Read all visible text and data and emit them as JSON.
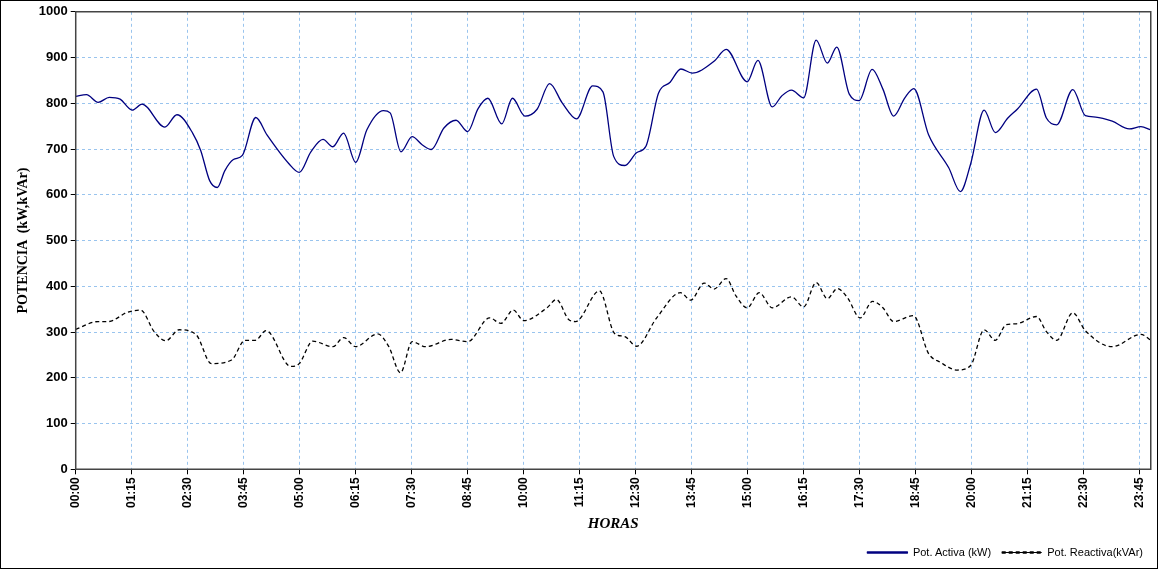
{
  "chart_data": {
    "type": "line",
    "xlabel": "HORAS",
    "ylabel": "POTENCIA  (kW,kVAr)",
    "xlim": [
      0,
      24
    ],
    "ylim": [
      0,
      1000
    ],
    "xticks": [
      {
        "value": 0,
        "label": "00:00"
      },
      {
        "value": 1.25,
        "label": "01:15"
      },
      {
        "value": 2.5,
        "label": "02:30"
      },
      {
        "value": 3.75,
        "label": "03:45"
      },
      {
        "value": 5,
        "label": "05:00"
      },
      {
        "value": 6.25,
        "label": "06:15"
      },
      {
        "value": 7.5,
        "label": "07:30"
      },
      {
        "value": 8.75,
        "label": "08:45"
      },
      {
        "value": 10,
        "label": "10:00"
      },
      {
        "value": 11.25,
        "label": "11:15"
      },
      {
        "value": 12.5,
        "label": "12:30"
      },
      {
        "value": 13.75,
        "label": "13:45"
      },
      {
        "value": 15,
        "label": "15:00"
      },
      {
        "value": 16.25,
        "label": "16:15"
      },
      {
        "value": 17.5,
        "label": "17:30"
      },
      {
        "value": 18.75,
        "label": "18:45"
      },
      {
        "value": 20,
        "label": "20:00"
      },
      {
        "value": 21.25,
        "label": "21:15"
      },
      {
        "value": 22.5,
        "label": "22:30"
      },
      {
        "value": 23.75,
        "label": "23:45"
      }
    ],
    "yticks": [
      0,
      100,
      200,
      300,
      400,
      500,
      600,
      700,
      800,
      900,
      1000
    ],
    "grid": true,
    "legend": "bottom right",
    "marker": "none",
    "series": [
      {
        "name": "Pot. Activa (kW)",
        "color": "#000080",
        "line_style": "solid",
        "x": [
          0,
          0.24,
          0.5,
          0.75,
          0.99,
          1.26,
          1.48,
          1.99,
          2.26,
          2.61,
          2.79,
          2.99,
          3.16,
          3.33,
          3.52,
          3.72,
          4.02,
          4.27,
          4.76,
          4.99,
          5.25,
          5.52,
          5.74,
          5.98,
          6.25,
          6.5,
          6.87,
          7.02,
          7.26,
          7.51,
          7.74,
          7.94,
          8.22,
          8.49,
          8.75,
          8.98,
          9.2,
          9.51,
          9.75,
          10.03,
          10.3,
          10.58,
          10.86,
          11.18,
          11.54,
          11.77,
          12.01,
          12.26,
          12.52,
          12.73,
          13.01,
          13.27,
          13.51,
          13.76,
          14.25,
          14.52,
          14.99,
          15.23,
          15.55,
          15.76,
          15.98,
          16.25,
          16.53,
          16.78,
          16.99,
          17.27,
          17.49,
          17.78,
          18.02,
          18.26,
          18.51,
          18.71,
          19.04,
          19.49,
          19.75,
          19.98,
          20.28,
          20.53,
          20.81,
          21.03,
          21.45,
          21.67,
          21.9,
          22.26,
          22.54,
          22.77,
          23.14,
          23.52,
          23.78,
          24
        ],
        "values": [
          815,
          819,
          802,
          813,
          809,
          785,
          798,
          748,
          775,
          735,
          697,
          631,
          616,
          653,
          677,
          686,
          769,
          731,
          668,
          649,
          694,
          721,
          705,
          735,
          671,
          742,
          784,
          779,
          694,
          727,
          709,
          699,
          746,
          763,
          738,
          788,
          811,
          755,
          811,
          772,
          787,
          843,
          801,
          766,
          838,
          825,
          684,
          664,
          692,
          706,
          822,
          846,
          875,
          866,
          892,
          918,
          847,
          894,
          792,
          816,
          829,
          812,
          938,
          888,
          923,
          820,
          806,
          874,
          831,
          772,
          812,
          832,
          731,
          659,
          607,
          668,
          785,
          736,
          768,
          788,
          831,
          768,
          753,
          830,
          773,
          770,
          761,
          744,
          749,
          742
        ]
      },
      {
        "name": "Pot. Reactiva(kVAr)",
        "color": "#000000",
        "line_style": "dashed",
        "x": [
          0,
          0.5,
          0.73,
          1.15,
          1.45,
          1.75,
          2.01,
          2.31,
          2.69,
          3.03,
          3.48,
          3.78,
          4.01,
          4.25,
          4.8,
          4.99,
          5.29,
          5.74,
          5.98,
          6.25,
          6.74,
          6.99,
          7.25,
          7.51,
          7.81,
          8.38,
          8.75,
          9.24,
          9.49,
          9.77,
          10,
          10.52,
          10.73,
          11.01,
          11.16,
          11.69,
          12.03,
          12.26,
          12.52,
          12.97,
          13.5,
          13.73,
          14.03,
          14.25,
          14.52,
          14.74,
          14.99,
          15.26,
          15.55,
          15.98,
          16.25,
          16.53,
          16.78,
          17,
          17.23,
          17.51,
          17.79,
          18.02,
          18.26,
          18.7,
          19.04,
          19.3,
          19.68,
          19.98,
          20.28,
          20.53,
          20.77,
          21,
          21.45,
          21.67,
          21.9,
          22.26,
          22.54,
          23.14,
          23.78,
          24
        ],
        "values": [
          306,
          323,
          323,
          343,
          348,
          301,
          281,
          305,
          294,
          231,
          239,
          282,
          282,
          303,
          225,
          231,
          280,
          268,
          288,
          268,
          296,
          268,
          211,
          279,
          268,
          284,
          279,
          331,
          319,
          348,
          325,
          353,
          371,
          327,
          323,
          390,
          297,
          290,
          269,
          331,
          386,
          370,
          407,
          394,
          417,
          379,
          353,
          386,
          353,
          377,
          355,
          408,
          373,
          395,
          375,
          331,
          367,
          353,
          323,
          336,
          253,
          234,
          217,
          227,
          305,
          282,
          316,
          318,
          334,
          301,
          282,
          342,
          303,
          268,
          295,
          282
        ]
      }
    ]
  }
}
